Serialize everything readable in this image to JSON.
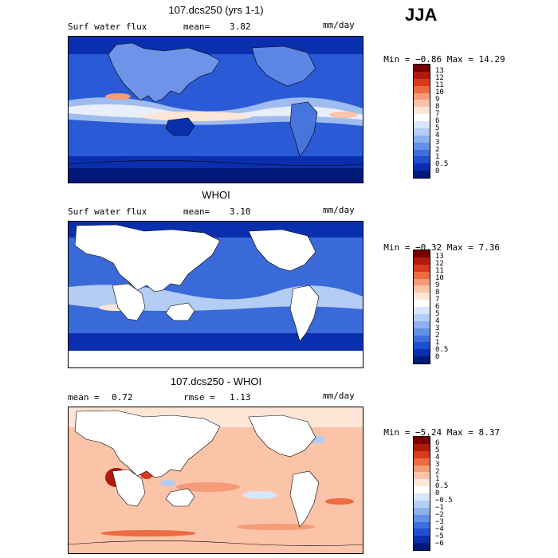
{
  "season": "JJA",
  "units": "mm/day",
  "panels": [
    {
      "title": "107.dcs250 (yrs 1-1)",
      "variable": "Surf water flux",
      "stat_label": "mean=",
      "stat_value": "3.82",
      "min_label": "Min =",
      "min_value": "−0.86",
      "max_label": "Max =",
      "max_value": "14.29",
      "colorbar_labels": [
        "13",
        "12",
        "11",
        "10",
        "9",
        "8",
        "7",
        "6",
        "5",
        "4",
        "3",
        "2",
        "1",
        "0.5",
        "0"
      ]
    },
    {
      "title": "WHOI",
      "variable": "Surf water flux",
      "stat_label": "mean=",
      "stat_value": "3.10",
      "min_label": "Min =",
      "min_value": "−0.32",
      "max_label": "Max =",
      "max_value": "7.36",
      "colorbar_labels": [
        "13",
        "12",
        "11",
        "10",
        "9",
        "8",
        "7",
        "6",
        "5",
        "4",
        "3",
        "2",
        "1",
        "0.5",
        "0"
      ]
    },
    {
      "title": "107.dcs250 - WHOI",
      "mean_label": "mean =",
      "mean_value": "0.72",
      "rmse_label": "rmse =",
      "rmse_value": "1.13",
      "min_label": "Min =",
      "min_value": "−5.24",
      "max_label": "Max =",
      "max_value": "8.37",
      "colorbar_labels": [
        "6",
        "5",
        "4",
        "3",
        "2",
        "1",
        "0.5",
        "0",
        "−0.5",
        "−1",
        "−2",
        "−3",
        "−4",
        "−5",
        "−6"
      ]
    }
  ],
  "colors": {
    "abs_scale": [
      "#7a0000",
      "#b01a0a",
      "#d83a1e",
      "#ee6a40",
      "#f59b78",
      "#fbc4a8",
      "#fde6d6",
      "#ffffff",
      "#d6e6fb",
      "#b3cdf5",
      "#8cb0ee",
      "#6490e6",
      "#3f6fdc",
      "#1f4fd0",
      "#0a2fae",
      "#001a7a"
    ],
    "diff_scale": [
      "#7a0000",
      "#b01a0a",
      "#d83a1e",
      "#ee6a40",
      "#f59b78",
      "#fbc4a8",
      "#fde6d6",
      "#ffffff",
      "#d6e6fb",
      "#b3cdf5",
      "#8cb0ee",
      "#6490e6",
      "#3f6fdc",
      "#1f4fd0",
      "#0a2fae",
      "#001a7a"
    ]
  }
}
